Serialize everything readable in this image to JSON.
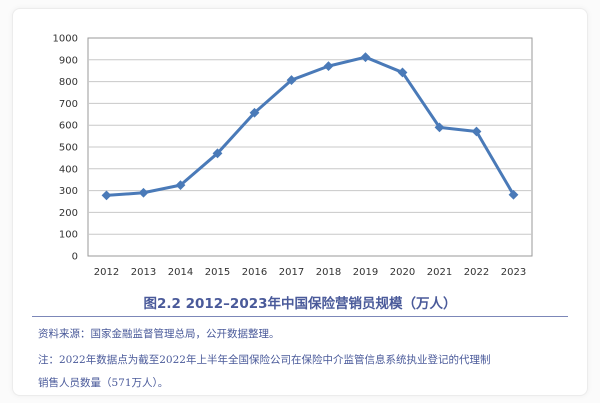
{
  "chart_data": {
    "type": "line",
    "title": "图2.2 2012–2023年中国保险营销员规模（万人）",
    "categories": [
      "2012",
      "2013",
      "2014",
      "2015",
      "2016",
      "2017",
      "2018",
      "2019",
      "2020",
      "2021",
      "2022",
      "2023"
    ],
    "series": [
      {
        "name": "",
        "values": [
          278,
          290,
          325,
          471,
          657,
          807,
          871,
          912,
          842,
          590,
          571,
          281
        ],
        "color": "#4a7ab8"
      }
    ],
    "ylim": [
      0,
      1000
    ],
    "yticks": [
      0,
      100,
      200,
      300,
      400,
      500,
      600,
      700,
      800,
      900,
      1000
    ],
    "grid": true,
    "legend": "none",
    "xlabel": "",
    "ylabel": ""
  },
  "notes": {
    "source": "资料来源：国家金融监督管理总局，公开数据整理。",
    "note_line1": "注：2022年数据点为截至2022年上半年全国保险公司在保险中介监管信息系统执业登记的代理制",
    "note_line2": "销售人员数量（571万人）。"
  },
  "colors": {
    "line": "#4a7ab8",
    "grid": "#c8c8c8",
    "caption": "#4a5a9a"
  }
}
